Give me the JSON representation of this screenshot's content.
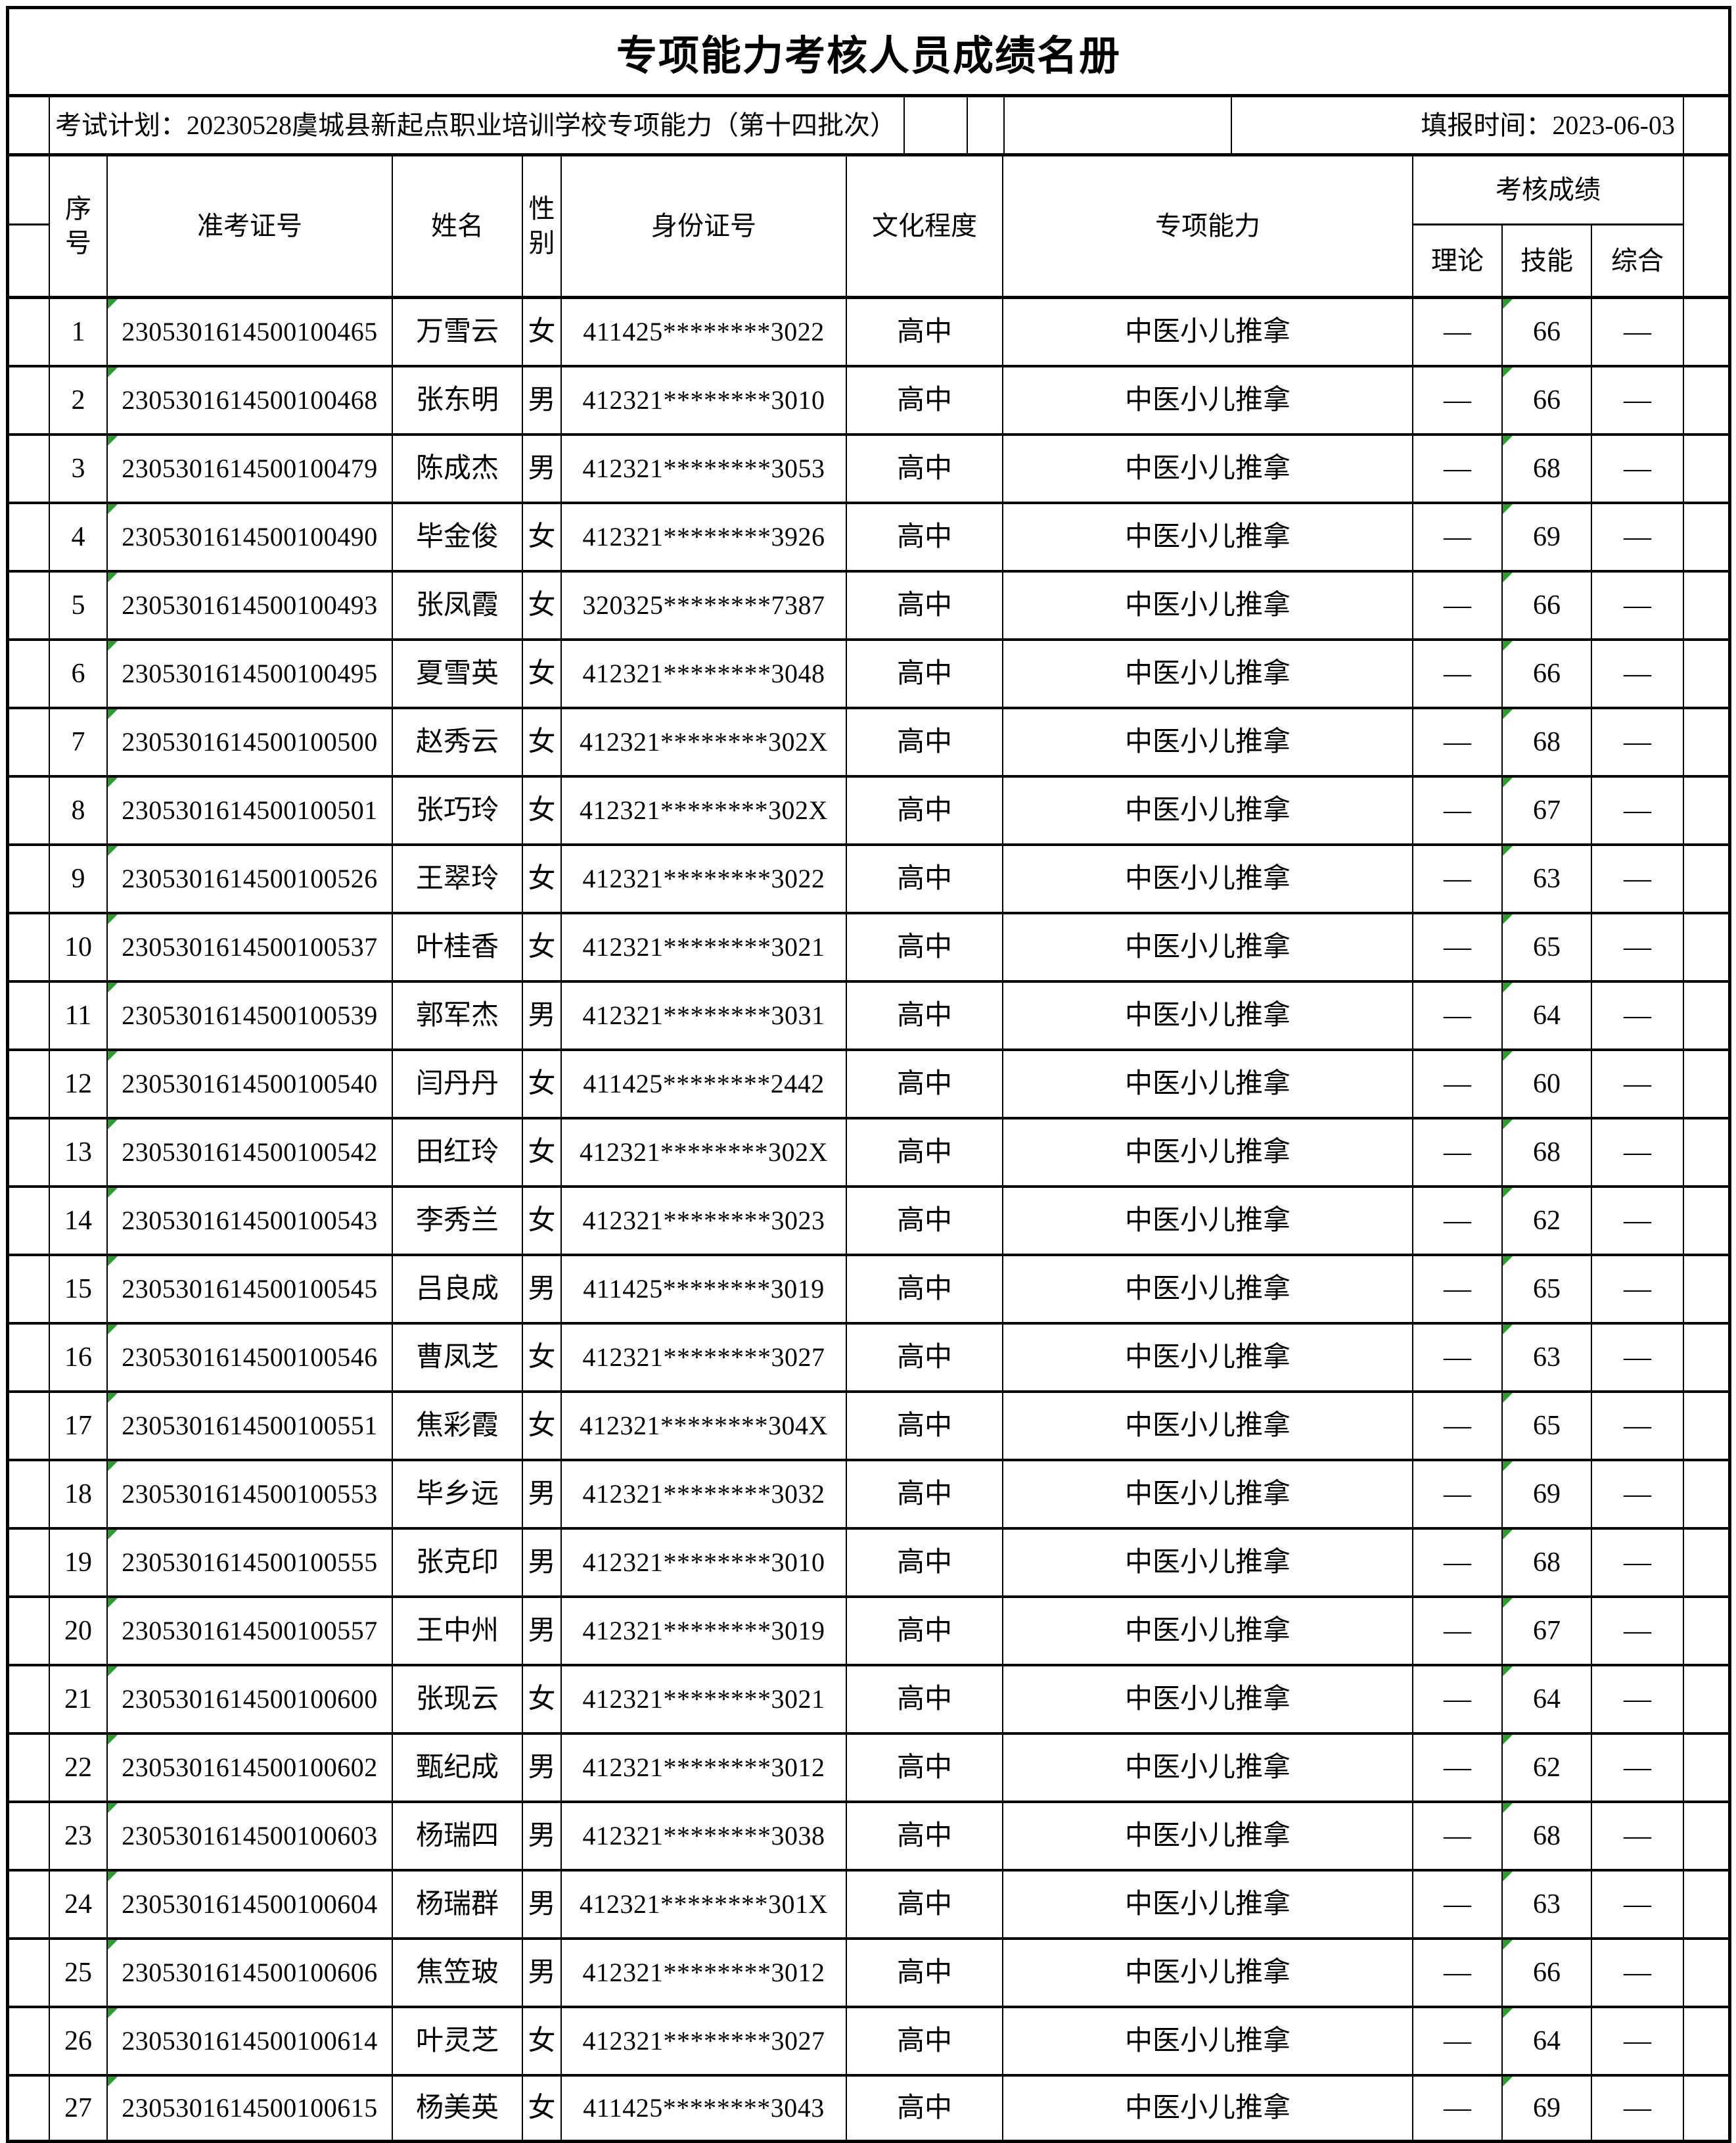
{
  "colors": {
    "marker_green": "#2e9b33",
    "border": "#000000"
  },
  "title": "专项能力考核人员成绩名册",
  "info": {
    "plan": "考试计划：20230528虞城县新起点职业培训学校专项能力（第十四批次）",
    "report_time": "填报时间：2023-06-03"
  },
  "header": {
    "no": "序号",
    "ticket": "准考证号",
    "name": "姓名",
    "gender": "性别",
    "idcard": "身份证号",
    "education": "文化程度",
    "ability": "专项能力",
    "score_group": "考核成绩",
    "theory": "理论",
    "skill": "技能",
    "comprehensive": "综合"
  },
  "rows": [
    {
      "no": "1",
      "ticket": "2305301614500100465",
      "name": "万雪云",
      "gender": "女",
      "idcard": "411425********3022",
      "education": "高中",
      "ability": "中医小儿推拿",
      "theory": "—",
      "skill": "66",
      "comprehensive": "—"
    },
    {
      "no": "2",
      "ticket": "2305301614500100468",
      "name": "张东明",
      "gender": "男",
      "idcard": "412321********3010",
      "education": "高中",
      "ability": "中医小儿推拿",
      "theory": "—",
      "skill": "66",
      "comprehensive": "—"
    },
    {
      "no": "3",
      "ticket": "2305301614500100479",
      "name": "陈成杰",
      "gender": "男",
      "idcard": "412321********3053",
      "education": "高中",
      "ability": "中医小儿推拿",
      "theory": "—",
      "skill": "68",
      "comprehensive": "—"
    },
    {
      "no": "4",
      "ticket": "2305301614500100490",
      "name": "毕金俊",
      "gender": "女",
      "idcard": "412321********3926",
      "education": "高中",
      "ability": "中医小儿推拿",
      "theory": "—",
      "skill": "69",
      "comprehensive": "—"
    },
    {
      "no": "5",
      "ticket": "2305301614500100493",
      "name": "张凤霞",
      "gender": "女",
      "idcard": "320325********7387",
      "education": "高中",
      "ability": "中医小儿推拿",
      "theory": "—",
      "skill": "66",
      "comprehensive": "—"
    },
    {
      "no": "6",
      "ticket": "2305301614500100495",
      "name": "夏雪英",
      "gender": "女",
      "idcard": "412321********3048",
      "education": "高中",
      "ability": "中医小儿推拿",
      "theory": "—",
      "skill": "66",
      "comprehensive": "—"
    },
    {
      "no": "7",
      "ticket": "2305301614500100500",
      "name": "赵秀云",
      "gender": "女",
      "idcard": "412321********302X",
      "education": "高中",
      "ability": "中医小儿推拿",
      "theory": "—",
      "skill": "68",
      "comprehensive": "—"
    },
    {
      "no": "8",
      "ticket": "2305301614500100501",
      "name": "张巧玲",
      "gender": "女",
      "idcard": "412321********302X",
      "education": "高中",
      "ability": "中医小儿推拿",
      "theory": "—",
      "skill": "67",
      "comprehensive": "—"
    },
    {
      "no": "9",
      "ticket": "2305301614500100526",
      "name": "王翠玲",
      "gender": "女",
      "idcard": "412321********3022",
      "education": "高中",
      "ability": "中医小儿推拿",
      "theory": "—",
      "skill": "63",
      "comprehensive": "—"
    },
    {
      "no": "10",
      "ticket": "2305301614500100537",
      "name": "叶桂香",
      "gender": "女",
      "idcard": "412321********3021",
      "education": "高中",
      "ability": "中医小儿推拿",
      "theory": "—",
      "skill": "65",
      "comprehensive": "—"
    },
    {
      "no": "11",
      "ticket": "2305301614500100539",
      "name": "郭军杰",
      "gender": "男",
      "idcard": "412321********3031",
      "education": "高中",
      "ability": "中医小儿推拿",
      "theory": "—",
      "skill": "64",
      "comprehensive": "—"
    },
    {
      "no": "12",
      "ticket": "2305301614500100540",
      "name": "闫丹丹",
      "gender": "女",
      "idcard": "411425********2442",
      "education": "高中",
      "ability": "中医小儿推拿",
      "theory": "—",
      "skill": "60",
      "comprehensive": "—"
    },
    {
      "no": "13",
      "ticket": "2305301614500100542",
      "name": "田红玲",
      "gender": "女",
      "idcard": "412321********302X",
      "education": "高中",
      "ability": "中医小儿推拿",
      "theory": "—",
      "skill": "68",
      "comprehensive": "—"
    },
    {
      "no": "14",
      "ticket": "2305301614500100543",
      "name": "李秀兰",
      "gender": "女",
      "idcard": "412321********3023",
      "education": "高中",
      "ability": "中医小儿推拿",
      "theory": "—",
      "skill": "62",
      "comprehensive": "—"
    },
    {
      "no": "15",
      "ticket": "2305301614500100545",
      "name": "吕良成",
      "gender": "男",
      "idcard": "411425********3019",
      "education": "高中",
      "ability": "中医小儿推拿",
      "theory": "—",
      "skill": "65",
      "comprehensive": "—"
    },
    {
      "no": "16",
      "ticket": "2305301614500100546",
      "name": "曹凤芝",
      "gender": "女",
      "idcard": "412321********3027",
      "education": "高中",
      "ability": "中医小儿推拿",
      "theory": "—",
      "skill": "63",
      "comprehensive": "—"
    },
    {
      "no": "17",
      "ticket": "2305301614500100551",
      "name": "焦彩霞",
      "gender": "女",
      "idcard": "412321********304X",
      "education": "高中",
      "ability": "中医小儿推拿",
      "theory": "—",
      "skill": "65",
      "comprehensive": "—"
    },
    {
      "no": "18",
      "ticket": "2305301614500100553",
      "name": "毕乡远",
      "gender": "男",
      "idcard": "412321********3032",
      "education": "高中",
      "ability": "中医小儿推拿",
      "theory": "—",
      "skill": "69",
      "comprehensive": "—"
    },
    {
      "no": "19",
      "ticket": "2305301614500100555",
      "name": "张克印",
      "gender": "男",
      "idcard": "412321********3010",
      "education": "高中",
      "ability": "中医小儿推拿",
      "theory": "—",
      "skill": "68",
      "comprehensive": "—"
    },
    {
      "no": "20",
      "ticket": "2305301614500100557",
      "name": "王中州",
      "gender": "男",
      "idcard": "412321********3019",
      "education": "高中",
      "ability": "中医小儿推拿",
      "theory": "—",
      "skill": "67",
      "comprehensive": "—"
    },
    {
      "no": "21",
      "ticket": "2305301614500100600",
      "name": "张现云",
      "gender": "女",
      "idcard": "412321********3021",
      "education": "高中",
      "ability": "中医小儿推拿",
      "theory": "—",
      "skill": "64",
      "comprehensive": "—"
    },
    {
      "no": "22",
      "ticket": "2305301614500100602",
      "name": "甄纪成",
      "gender": "男",
      "idcard": "412321********3012",
      "education": "高中",
      "ability": "中医小儿推拿",
      "theory": "—",
      "skill": "62",
      "comprehensive": "—"
    },
    {
      "no": "23",
      "ticket": "2305301614500100603",
      "name": "杨瑞四",
      "gender": "男",
      "idcard": "412321********3038",
      "education": "高中",
      "ability": "中医小儿推拿",
      "theory": "—",
      "skill": "68",
      "comprehensive": "—"
    },
    {
      "no": "24",
      "ticket": "2305301614500100604",
      "name": "杨瑞群",
      "gender": "男",
      "idcard": "412321********301X",
      "education": "高中",
      "ability": "中医小儿推拿",
      "theory": "—",
      "skill": "63",
      "comprehensive": "—"
    },
    {
      "no": "25",
      "ticket": "2305301614500100606",
      "name": "焦笠玻",
      "gender": "男",
      "idcard": "412321********3012",
      "education": "高中",
      "ability": "中医小儿推拿",
      "theory": "—",
      "skill": "66",
      "comprehensive": "—"
    },
    {
      "no": "26",
      "ticket": "2305301614500100614",
      "name": "叶灵芝",
      "gender": "女",
      "idcard": "412321********3027",
      "education": "高中",
      "ability": "中医小儿推拿",
      "theory": "—",
      "skill": "64",
      "comprehensive": "—"
    },
    {
      "no": "27",
      "ticket": "2305301614500100615",
      "name": "杨美英",
      "gender": "女",
      "idcard": "411425********3043",
      "education": "高中",
      "ability": "中医小儿推拿",
      "theory": "—",
      "skill": "69",
      "comprehensive": "—"
    }
  ]
}
